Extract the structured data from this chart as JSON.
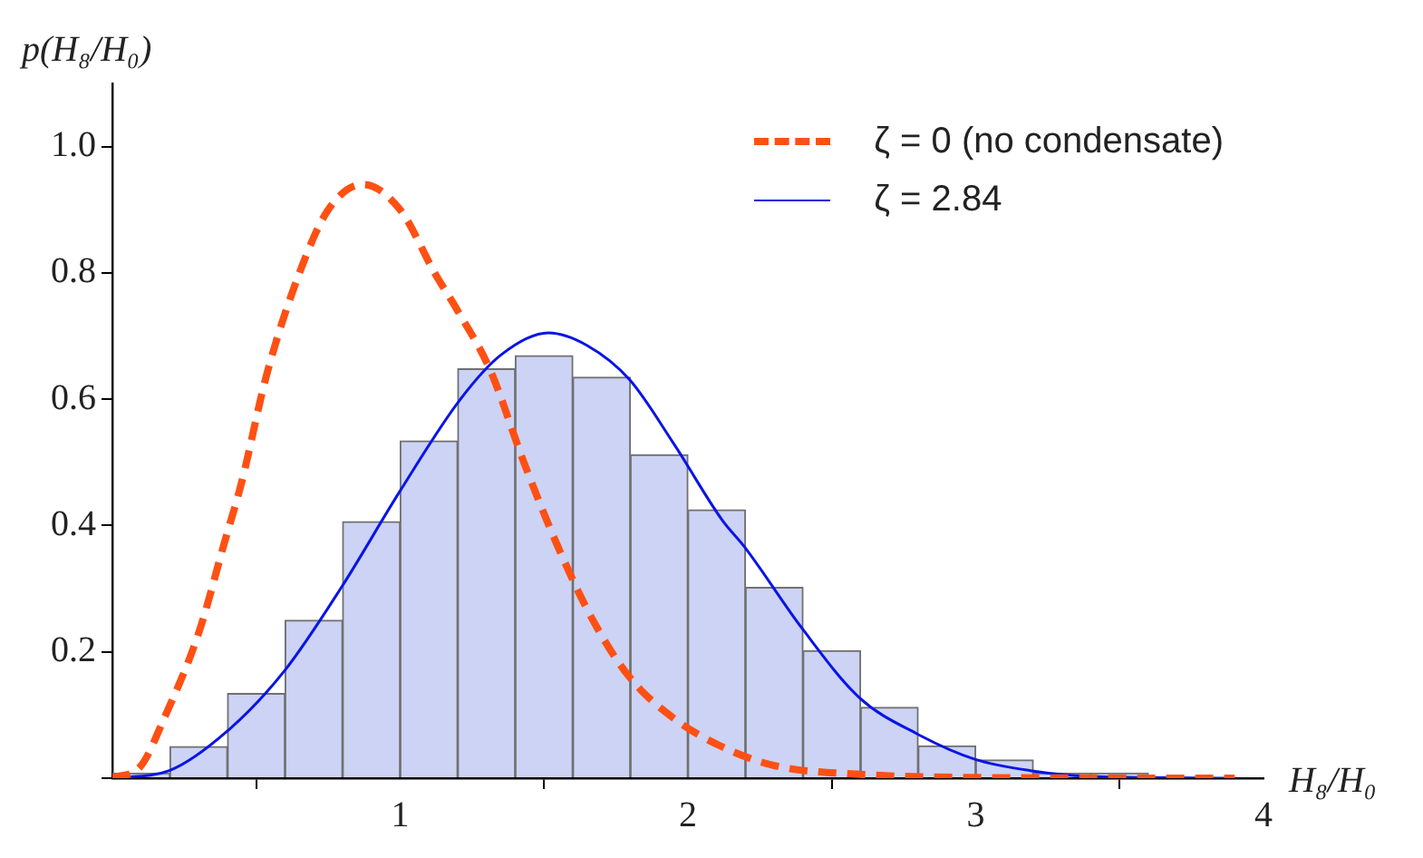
{
  "chart_data": {
    "type": "histogram",
    "xlabel": "H₈/H₀",
    "ylabel": "p(H₈/H₀)",
    "bins": [
      0,
      0.2,
      0.4,
      0.6,
      0.8,
      1.0,
      1.2,
      1.4,
      1.6,
      1.8,
      2.0,
      2.2,
      2.4,
      2.6,
      2.8,
      3.0,
      3.2,
      3.4,
      3.6
    ],
    "values": [
      0.008,
      0.05,
      0.134,
      0.25,
      0.406,
      0.534,
      0.648,
      0.669,
      0.635,
      0.512,
      0.425,
      0.302,
      0.202,
      0.112,
      0.051,
      0.029,
      0.008,
      0.008
    ],
    "color": "#ccd3f4",
    "series": [
      {
        "type": "line",
        "name": "ζ = 0 (no condensate)",
        "color": "#ff5014",
        "line_style": "dashed",
        "x": [
          0,
          0.1,
          0.18,
          0.3,
          0.39,
          0.45,
          0.535,
          0.65,
          0.75,
          0.87,
          1.0,
          1.12,
          1.2,
          1.313,
          1.43,
          1.545,
          1.67,
          1.797,
          1.95,
          2.113,
          2.3,
          2.6,
          3.0,
          3.9
        ],
        "values": [
          0,
          0.02,
          0.095,
          0.23,
          0.374,
          0.47,
          0.637,
          0.8,
          0.9,
          0.94,
          0.9,
          0.8,
          0.74,
          0.646,
          0.5,
          0.37,
          0.25,
          0.16,
          0.095,
          0.051,
          0.02,
          0.006,
          0.001,
          0
        ]
      },
      {
        "type": "line",
        "name": "ζ = 2.84",
        "color": "#0a14e6",
        "line_style": "solid",
        "x": [
          0,
          0.198,
          0.398,
          0.598,
          0.797,
          1.0,
          1.206,
          1.35,
          1.515,
          1.65,
          1.797,
          1.95,
          2.12,
          2.197,
          2.397,
          2.597,
          2.797,
          2.997,
          3.19,
          3.4,
          3.9
        ],
        "values": [
          0,
          0.012,
          0.074,
          0.17,
          0.303,
          0.455,
          0.598,
          0.67,
          0.705,
          0.685,
          0.631,
          0.53,
          0.408,
          0.366,
          0.237,
          0.127,
          0.07,
          0.03,
          0.012,
          0.003,
          0
        ]
      }
    ],
    "xlim": [
      0,
      4
    ],
    "xticks": [
      {
        "value": 0,
        "label": null
      },
      1,
      2,
      3,
      4
    ],
    "ylim": [
      0,
      1.1
    ],
    "yticks": [
      {
        "value": 0,
        "label": null
      },
      0.2,
      0.4,
      0.6,
      0.8,
      {
        "value": 1,
        "label": "1.0"
      }
    ],
    "grid": false,
    "legend": "top right",
    "marker": "none"
  }
}
